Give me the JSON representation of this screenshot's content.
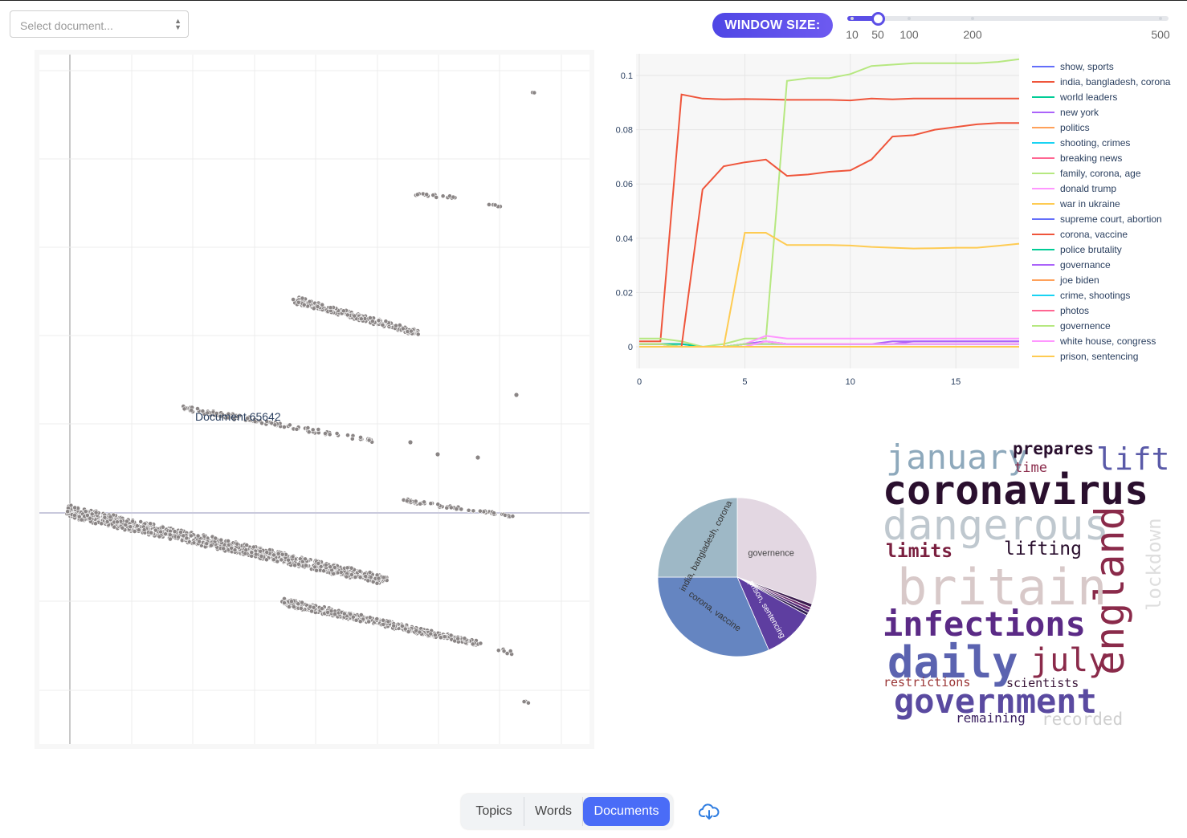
{
  "document_select": {
    "placeholder": "Select document..."
  },
  "window_size": {
    "label": "WINDOW SIZE:",
    "value": 50,
    "min": 10,
    "max": 500,
    "ticks": [
      "10",
      "50",
      "100",
      "200",
      "500"
    ]
  },
  "scatter": {
    "hover_label": "Document 65642"
  },
  "chart_data": [
    {
      "type": "line",
      "title": "",
      "xlabel": "",
      "ylabel": "",
      "xlim": [
        0,
        18
      ],
      "ylim": [
        -0.008,
        0.108
      ],
      "xticks": [
        "0",
        "5",
        "10",
        "15"
      ],
      "yticks": [
        "0",
        "0.02",
        "0.04",
        "0.06",
        "0.08",
        "0.1"
      ],
      "x": [
        0,
        1,
        2,
        3,
        4,
        5,
        6,
        7,
        8,
        9,
        10,
        11,
        12,
        13,
        14,
        15,
        16,
        17,
        18
      ],
      "series": [
        {
          "name": "show, sports",
          "color": "#636efa",
          "values": [
            0.001,
            0.001,
            0.001,
            0,
            0,
            0.001,
            0.002,
            0.001,
            0.001,
            0.001,
            0.001,
            0.001,
            0.001,
            0.001,
            0.001,
            0.001,
            0.001,
            0.001,
            0.001
          ]
        },
        {
          "name": "india, bangladesh, corona",
          "color": "#ef553b",
          "values": [
            0.002,
            0.002,
            0.093,
            0.0915,
            0.0912,
            0.0913,
            0.0912,
            0.091,
            0.091,
            0.091,
            0.0908,
            0.0915,
            0.0912,
            0.0915,
            0.0915,
            0.0915,
            0.0915,
            0.0915,
            0.0915
          ]
        },
        {
          "name": "world leaders",
          "color": "#00cc96",
          "values": [
            0.001,
            0.001,
            0.001,
            0,
            0,
            0,
            0,
            0,
            0,
            0,
            0,
            0,
            0,
            0,
            0,
            0,
            0,
            0,
            0
          ]
        },
        {
          "name": "new york",
          "color": "#ab63fa",
          "values": [
            0,
            0,
            0,
            0,
            0,
            0.001,
            0.001,
            0.001,
            0.001,
            0.001,
            0.001,
            0.001,
            0.001,
            0.002,
            0.002,
            0.002,
            0.002,
            0.002,
            0.002
          ]
        },
        {
          "name": "politics",
          "color": "#ffa15a",
          "values": [
            0,
            0,
            0,
            0,
            0,
            0,
            0,
            0,
            0,
            0,
            0,
            0,
            0,
            0,
            0,
            0,
            0,
            0,
            0
          ]
        },
        {
          "name": "shooting, crimes",
          "color": "#19d3f3",
          "values": [
            0,
            0,
            0,
            0,
            0,
            0,
            0,
            0,
            0,
            0,
            0,
            0,
            0,
            0,
            0,
            0,
            0,
            0,
            0
          ]
        },
        {
          "name": "breaking news",
          "color": "#ff6692",
          "values": [
            0,
            0,
            0,
            0,
            0,
            0,
            0,
            0,
            0,
            0,
            0,
            0,
            0,
            0,
            0,
            0,
            0,
            0,
            0
          ]
        },
        {
          "name": "family, corona, age",
          "color": "#b6e880",
          "values": [
            0.003,
            0.003,
            0.002,
            0,
            0.001,
            0.003,
            0.003,
            0.098,
            0.099,
            0.099,
            0.1005,
            0.1035,
            0.104,
            0.1045,
            0.1045,
            0.1045,
            0.1045,
            0.105,
            0.106
          ]
        },
        {
          "name": "donald trump",
          "color": "#ff97ff",
          "values": [
            0,
            0,
            0,
            0,
            0,
            0.001,
            0.004,
            0.003,
            0.003,
            0.003,
            0.003,
            0.003,
            0.003,
            0.003,
            0.003,
            0.003,
            0.003,
            0.003,
            0.003
          ]
        },
        {
          "name": "war in ukraine",
          "color": "#fecb52",
          "values": [
            0,
            0,
            0,
            0,
            0,
            0.042,
            0.042,
            0.0375,
            0.0375,
            0.0375,
            0.0373,
            0.0368,
            0.0365,
            0.0362,
            0.0363,
            0.0365,
            0.0365,
            0.0372,
            0.038
          ]
        },
        {
          "name": "supreme court, abortion",
          "color": "#636efa",
          "values": [
            0,
            0,
            0,
            0,
            0,
            0.001,
            0.001,
            0.001,
            0.001,
            0.001,
            0.001,
            0.001,
            0.001,
            0.001,
            0.001,
            0.001,
            0.001,
            0.001,
            0.001
          ]
        },
        {
          "name": "corona, vaccine",
          "color": "#ef553b",
          "values": [
            0.001,
            0.001,
            0,
            0.058,
            0.0665,
            0.068,
            0.069,
            0.063,
            0.0635,
            0.0645,
            0.065,
            0.069,
            0.0775,
            0.078,
            0.08,
            0.081,
            0.082,
            0.0825,
            0.0825
          ]
        },
        {
          "name": "police brutality",
          "color": "#00cc96",
          "values": [
            0,
            0,
            0,
            0,
            0,
            0,
            0,
            0,
            0,
            0,
            0,
            0,
            0,
            0,
            0,
            0,
            0,
            0,
            0
          ]
        },
        {
          "name": "governance",
          "color": "#ab63fa",
          "values": [
            0,
            0,
            0,
            0,
            0,
            0.001,
            0.002,
            0.001,
            0.001,
            0.001,
            0.001,
            0.001,
            0.002,
            0.002,
            0.002,
            0.002,
            0.002,
            0.002,
            0.002
          ]
        },
        {
          "name": "joe biden",
          "color": "#ffa15a",
          "values": [
            0,
            0,
            0,
            0,
            0,
            0,
            0,
            0,
            0,
            0,
            0,
            0,
            0,
            0,
            0,
            0,
            0,
            0,
            0
          ]
        },
        {
          "name": "crime, shootings",
          "color": "#19d3f3",
          "values": [
            0,
            0,
            0,
            0,
            0,
            0,
            0,
            0,
            0,
            0,
            0,
            0,
            0,
            0,
            0,
            0,
            0,
            0,
            0
          ]
        },
        {
          "name": "photos",
          "color": "#ff6692",
          "values": [
            0,
            0,
            0,
            0,
            0,
            0,
            0,
            0,
            0,
            0,
            0,
            0,
            0,
            0,
            0,
            0,
            0,
            0,
            0
          ]
        },
        {
          "name": "governence",
          "color": "#b6e880",
          "values": [
            0.001,
            0.001,
            0,
            0,
            0,
            0.001,
            0.001,
            0.001,
            0.001,
            0.001,
            0.001,
            0.001,
            0.001,
            0.001,
            0.001,
            0.001,
            0.001,
            0.001,
            0.001
          ]
        },
        {
          "name": "white house, congress",
          "color": "#ff97ff",
          "values": [
            0,
            0,
            0,
            0,
            0,
            0,
            0.002,
            0.001,
            0.001,
            0.001,
            0.001,
            0.001,
            0.001,
            0.001,
            0.001,
            0.001,
            0.001,
            0.001,
            0.001
          ]
        },
        {
          "name": "prison, sentencing",
          "color": "#fecb52",
          "values": [
            0,
            0,
            0,
            0,
            0,
            0,
            0,
            0,
            0,
            0,
            0,
            0,
            0,
            0,
            0,
            0,
            0,
            0,
            0
          ]
        }
      ]
    },
    {
      "type": "pie",
      "slices": [
        {
          "label": "governence",
          "value": 30.5,
          "color": "#e3d7e2",
          "text_color": "#444"
        },
        {
          "label": "",
          "value": 0.7,
          "color": "#3b1b4f",
          "text_color": "#fff"
        },
        {
          "label": "",
          "value": 0.6,
          "color": "#6a2a6e",
          "text_color": "#fff"
        },
        {
          "label": "",
          "value": 0.6,
          "color": "#4a2370",
          "text_color": "#fff"
        },
        {
          "label": "",
          "value": 0.6,
          "color": "#2d1b4d",
          "text_color": "#fff"
        },
        {
          "label": "prison, sentencing",
          "value": 10.5,
          "color": "#5e3ea0",
          "text_color": "#fff"
        },
        {
          "label": "corona, vaccine",
          "value": 31.5,
          "color": "#6585c1",
          "text_color": "#333"
        },
        {
          "label": "india, bangladesh, corona",
          "value": 25,
          "color": "#9eb8c6",
          "text_color": "#333"
        }
      ]
    }
  ],
  "word_cloud": {
    "words": [
      {
        "text": "january",
        "color": "#8ea9bc"
      },
      {
        "text": "prepares",
        "color": "#2a0f2e"
      },
      {
        "text": "lift",
        "color": "#5a5aa8"
      },
      {
        "text": "time",
        "color": "#8a2a4a"
      },
      {
        "text": "coronavirus",
        "color": "#2a0f2e"
      },
      {
        "text": "dangerous",
        "color": "#bfc8cf"
      },
      {
        "text": "limits",
        "color": "#7a1f3f"
      },
      {
        "text": "lifting",
        "color": "#2a0f2e"
      },
      {
        "text": "england",
        "color": "#8a2a4a"
      },
      {
        "text": "lockdown",
        "color": "#dedede"
      },
      {
        "text": "britain",
        "color": "#d8c9c9"
      },
      {
        "text": "infections",
        "color": "#5b2a86"
      },
      {
        "text": "daily",
        "color": "#5b63b0"
      },
      {
        "text": "july",
        "color": "#8a2a4a"
      },
      {
        "text": "restrictions",
        "color": "#9a3535"
      },
      {
        "text": "scientists",
        "color": "#3a1538"
      },
      {
        "text": "government",
        "color": "#5a4aa0"
      },
      {
        "text": "remaining",
        "color": "#3a2060"
      },
      {
        "text": "recorded",
        "color": "#cfcfcf"
      }
    ]
  },
  "tabs": [
    {
      "label": "Topics",
      "active": false
    },
    {
      "label": "Words",
      "active": false
    },
    {
      "label": "Documents",
      "active": true
    }
  ],
  "icons": {
    "download": "cloud-download-icon",
    "select_arrows": "chevron-updown-icon"
  },
  "colors": {
    "accent": "#4a6cf7",
    "slider": "#5b4ee6",
    "scatter_point": "#8a8585"
  }
}
